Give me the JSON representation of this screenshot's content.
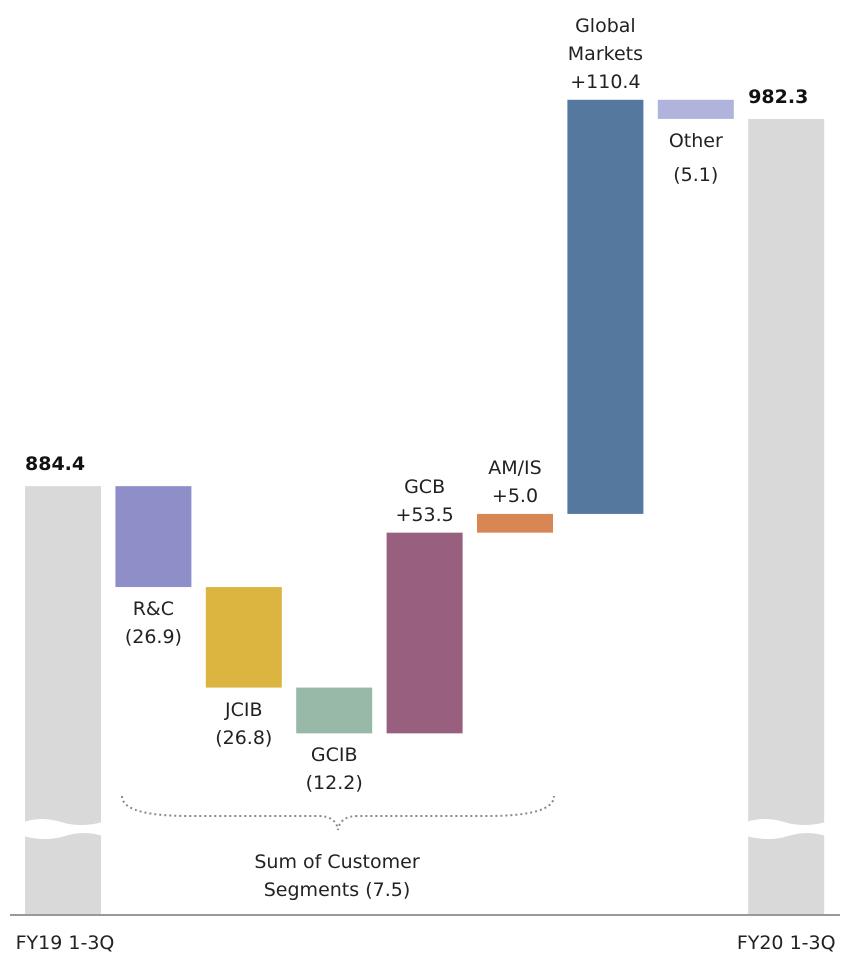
{
  "chart_data": {
    "type": "waterfall",
    "categories": [
      "FY19 1-3Q",
      "R&C",
      "JCIB",
      "GCIB",
      "GCB",
      "AM/IS",
      "Global Markets",
      "Other",
      "FY20 1-3Q"
    ],
    "measures": [
      "total",
      "relative",
      "relative",
      "relative",
      "relative",
      "relative",
      "relative",
      "relative",
      "total"
    ],
    "values": [
      884.4,
      -26.9,
      -26.8,
      -12.2,
      53.5,
      5.0,
      110.4,
      -5.1,
      982.3
    ],
    "value_labels": [
      "884.4",
      "(26.9)",
      "(26.8)",
      "(12.2)",
      "+53.5",
      "+5.0",
      "+110.4",
      "(5.1)",
      "982.3"
    ],
    "colors": [
      "#d9d9d9",
      "#8e8fc8",
      "#dcb440",
      "#98b8a8",
      "#98607e",
      "#d98655",
      "#55789e",
      "#b0b3dc",
      "#d9d9d9"
    ],
    "ylim": [
      793,
      1014
    ],
    "annotation": "Sum of Customer Segments (7.5)"
  }
}
